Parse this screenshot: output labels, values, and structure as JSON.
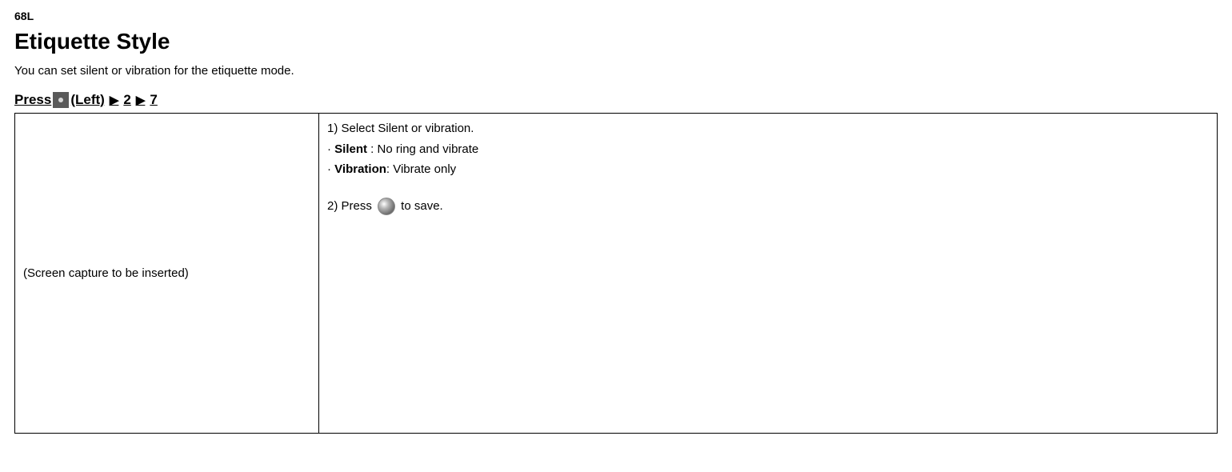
{
  "page": {
    "number": "68L",
    "title": "Etiquette Style",
    "description": "You can set silent or vibration for the etiquette mode.",
    "nav": {
      "press": "Press ",
      "left_label": "(Left)",
      "arrow": "▶",
      "step1": "2",
      "step2": "7"
    },
    "left_cell": "(Screen capture to be inserted)",
    "steps": {
      "step1_text": "1) Select Silent or vibration.",
      "bullet1_prefix": "· ",
      "bullet1_bold": "Silent",
      "bullet1_rest": " : No ring and vibrate",
      "bullet2_prefix": "· ",
      "bullet2_bold": "Vibration",
      "bullet2_rest": ": Vibrate only",
      "step2_prefix": "2) Press ",
      "step2_suffix": " to save."
    }
  }
}
